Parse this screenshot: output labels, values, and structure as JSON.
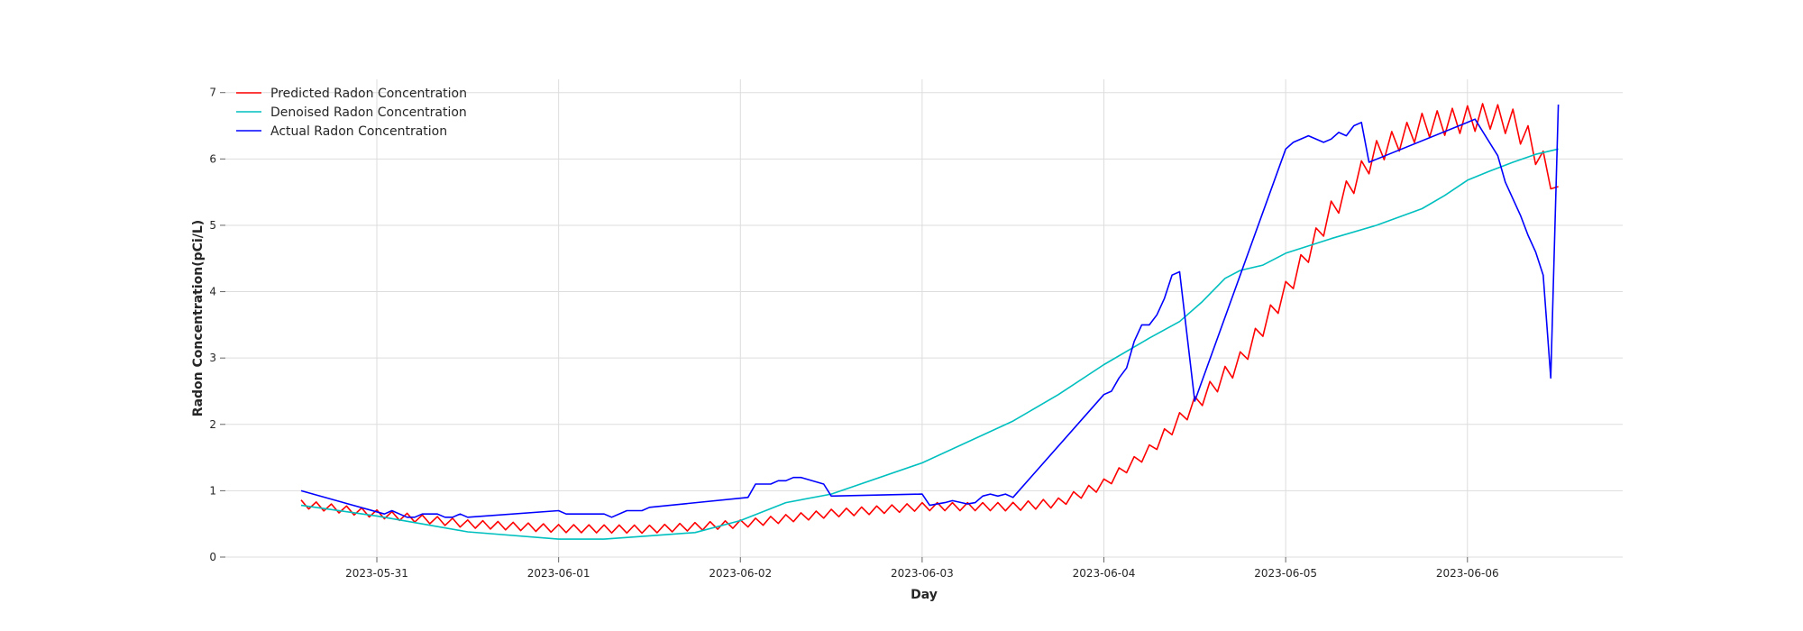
{
  "chart_data": {
    "type": "line",
    "xlabel": "Day",
    "ylabel": "Radon Concentration(pCi/L)",
    "xlim": [
      "2023-05-30T04:00",
      "2023-06-06T20:30"
    ],
    "ylim": [
      0,
      7.2
    ],
    "x_tick_labels": [
      "2023-05-31",
      "2023-06-01",
      "2023-06-02",
      "2023-06-03",
      "2023-06-04",
      "2023-06-05",
      "2023-06-06"
    ],
    "y_tick_labels": [
      "0",
      "1",
      "2",
      "3",
      "4",
      "5",
      "6",
      "7"
    ],
    "grid": true,
    "legend_location": "upper-left",
    "start": "2023-05-30T14:00",
    "end": "2023-06-06T12:00",
    "series": [
      {
        "name": "Predicted Radon Concentration",
        "color": "#ff0000",
        "shape": "zigzag",
        "step_hours": 1,
        "amplitude_points": [
          [
            0,
            0.06
          ],
          [
            90,
            0.06
          ],
          [
            110,
            0.08
          ],
          [
            114,
            0.1
          ],
          [
            118,
            0.12
          ],
          [
            122,
            0.14
          ],
          [
            134,
            0.16
          ],
          [
            154,
            0.2
          ],
          [
            162,
            0.2
          ],
          [
            168,
            0.1
          ],
          [
            190,
            0.06
          ]
        ],
        "trend": [
          [
            "2023-05-30T14:00",
            0.8
          ],
          [
            "2023-05-31T00:00",
            0.65
          ],
          [
            "2023-05-31T12:00",
            0.5
          ],
          [
            "2023-06-01T00:00",
            0.43
          ],
          [
            "2023-06-01T12:00",
            0.42
          ],
          [
            "2023-06-02T00:00",
            0.5
          ],
          [
            "2023-06-02T12:00",
            0.66
          ],
          [
            "2023-06-03T00:00",
            0.76
          ],
          [
            "2023-06-03T12:00",
            0.76
          ],
          [
            "2023-06-03T18:00",
            0.82
          ],
          [
            "2023-06-04T00:00",
            1.1
          ],
          [
            "2023-06-04T06:00",
            1.6
          ],
          [
            "2023-06-04T12:00",
            2.3
          ],
          [
            "2023-06-04T18:00",
            2.95
          ],
          [
            "2023-06-05T00:00",
            4.0
          ],
          [
            "2023-06-05T06:00",
            5.2
          ],
          [
            "2023-06-05T12:00",
            6.1
          ],
          [
            "2023-06-05T18:00",
            6.5
          ],
          [
            "2023-06-06T00:00",
            6.6
          ],
          [
            "2023-06-06T03:00",
            6.65
          ],
          [
            "2023-06-06T06:00",
            6.55
          ],
          [
            "2023-06-06T08:00",
            6.3
          ],
          [
            "2023-06-06T09:00",
            6.1
          ],
          [
            "2023-06-06T10:00",
            5.95
          ],
          [
            "2023-06-06T11:00",
            5.7
          ],
          [
            "2023-06-06T12:00",
            5.45
          ]
        ]
      },
      {
        "name": "Denoised Radon Concentration",
        "color": "#00bfbf",
        "shape": "smooth",
        "points": [
          [
            "2023-05-30T14:00",
            0.78
          ],
          [
            "2023-05-31T00:00",
            0.62
          ],
          [
            "2023-05-31T06:00",
            0.5
          ],
          [
            "2023-05-31T12:00",
            0.38
          ],
          [
            "2023-06-01T00:00",
            0.27
          ],
          [
            "2023-06-01T06:00",
            0.27
          ],
          [
            "2023-06-01T12:00",
            0.32
          ],
          [
            "2023-06-01T18:00",
            0.37
          ],
          [
            "2023-06-02T00:00",
            0.55
          ],
          [
            "2023-06-02T06:00",
            0.82
          ],
          [
            "2023-06-02T12:00",
            0.95
          ],
          [
            "2023-06-03T00:00",
            1.42
          ],
          [
            "2023-06-03T12:00",
            2.05
          ],
          [
            "2023-06-03T18:00",
            2.45
          ],
          [
            "2023-06-04T00:00",
            2.9
          ],
          [
            "2023-06-04T06:00",
            3.3
          ],
          [
            "2023-06-04T10:00",
            3.55
          ],
          [
            "2023-06-04T13:00",
            3.85
          ],
          [
            "2023-06-04T16:00",
            4.2
          ],
          [
            "2023-06-04T18:00",
            4.32
          ],
          [
            "2023-06-04T21:00",
            4.4
          ],
          [
            "2023-06-05T00:00",
            4.58
          ],
          [
            "2023-06-05T06:00",
            4.8
          ],
          [
            "2023-06-05T12:00",
            5.0
          ],
          [
            "2023-06-05T18:00",
            5.25
          ],
          [
            "2023-06-05T21:00",
            5.45
          ],
          [
            "2023-06-06T00:00",
            5.68
          ],
          [
            "2023-06-06T03:00",
            5.82
          ],
          [
            "2023-06-06T06:00",
            5.95
          ],
          [
            "2023-06-06T09:00",
            6.07
          ],
          [
            "2023-06-06T12:00",
            6.15
          ]
        ]
      },
      {
        "name": "Actual Radon Concentration",
        "color": "#0000ff",
        "shape": "polyline",
        "points": [
          [
            "2023-05-30T14:00",
            1.0
          ],
          [
            "2023-05-31T01:00",
            0.65
          ],
          [
            "2023-05-31T02:00",
            0.7
          ],
          [
            "2023-05-31T03:00",
            0.65
          ],
          [
            "2023-05-31T04:00",
            0.6
          ],
          [
            "2023-05-31T05:00",
            0.6
          ],
          [
            "2023-05-31T06:00",
            0.65
          ],
          [
            "2023-05-31T07:00",
            0.65
          ],
          [
            "2023-05-31T08:00",
            0.65
          ],
          [
            "2023-05-31T09:00",
            0.6
          ],
          [
            "2023-05-31T10:00",
            0.6
          ],
          [
            "2023-05-31T11:00",
            0.65
          ],
          [
            "2023-05-31T12:00",
            0.6
          ],
          [
            "2023-06-01T00:00",
            0.7
          ],
          [
            "2023-06-01T01:00",
            0.65
          ],
          [
            "2023-06-01T02:00",
            0.65
          ],
          [
            "2023-06-01T03:00",
            0.65
          ],
          [
            "2023-06-01T06:00",
            0.65
          ],
          [
            "2023-06-01T07:00",
            0.6
          ],
          [
            "2023-06-01T09:00",
            0.7
          ],
          [
            "2023-06-01T11:00",
            0.7
          ],
          [
            "2023-06-01T12:00",
            0.75
          ],
          [
            "2023-06-02T01:00",
            0.9
          ],
          [
            "2023-06-02T02:00",
            1.1
          ],
          [
            "2023-06-02T04:00",
            1.1
          ],
          [
            "2023-06-02T05:00",
            1.15
          ],
          [
            "2023-06-02T06:00",
            1.15
          ],
          [
            "2023-06-02T07:00",
            1.2
          ],
          [
            "2023-06-02T08:00",
            1.2
          ],
          [
            "2023-06-02T11:00",
            1.1
          ],
          [
            "2023-06-02T12:00",
            0.92
          ],
          [
            "2023-06-03T00:00",
            0.95
          ],
          [
            "2023-06-03T01:00",
            0.78
          ],
          [
            "2023-06-03T02:00",
            0.8
          ],
          [
            "2023-06-03T03:00",
            0.82
          ],
          [
            "2023-06-03T04:00",
            0.85
          ],
          [
            "2023-06-03T06:00",
            0.8
          ],
          [
            "2023-06-03T07:00",
            0.82
          ],
          [
            "2023-06-03T08:00",
            0.92
          ],
          [
            "2023-06-03T09:00",
            0.95
          ],
          [
            "2023-06-03T10:00",
            0.92
          ],
          [
            "2023-06-03T11:00",
            0.95
          ],
          [
            "2023-06-03T12:00",
            0.9
          ],
          [
            "2023-06-04T00:00",
            2.45
          ],
          [
            "2023-06-04T01:00",
            2.5
          ],
          [
            "2023-06-04T02:00",
            2.7
          ],
          [
            "2023-06-04T03:00",
            2.85
          ],
          [
            "2023-06-04T04:00",
            3.25
          ],
          [
            "2023-06-04T05:00",
            3.5
          ],
          [
            "2023-06-04T06:00",
            3.5
          ],
          [
            "2023-06-04T07:00",
            3.65
          ],
          [
            "2023-06-04T08:00",
            3.9
          ],
          [
            "2023-06-04T09:00",
            4.25
          ],
          [
            "2023-06-04T10:00",
            4.3
          ],
          [
            "2023-06-04T12:00",
            2.35
          ],
          [
            "2023-06-05T00:00",
            6.15
          ],
          [
            "2023-06-05T01:00",
            6.25
          ],
          [
            "2023-06-05T03:00",
            6.35
          ],
          [
            "2023-06-05T05:00",
            6.25
          ],
          [
            "2023-06-05T06:00",
            6.3
          ],
          [
            "2023-06-05T07:00",
            6.4
          ],
          [
            "2023-06-05T08:00",
            6.35
          ],
          [
            "2023-06-05T09:00",
            6.5
          ],
          [
            "2023-06-05T10:00",
            6.55
          ],
          [
            "2023-06-05T11:00",
            5.95
          ],
          [
            "2023-06-06T00:00",
            6.55
          ],
          [
            "2023-06-06T01:00",
            6.6
          ],
          [
            "2023-06-06T04:00",
            6.05
          ],
          [
            "2023-06-06T05:00",
            5.65
          ],
          [
            "2023-06-06T07:00",
            5.15
          ],
          [
            "2023-06-06T08:00",
            4.85
          ],
          [
            "2023-06-06T09:00",
            4.6
          ],
          [
            "2023-06-06T10:00",
            4.25
          ],
          [
            "2023-06-06T11:00",
            2.7
          ],
          [
            "2023-06-06T12:00",
            6.82
          ]
        ]
      }
    ]
  }
}
